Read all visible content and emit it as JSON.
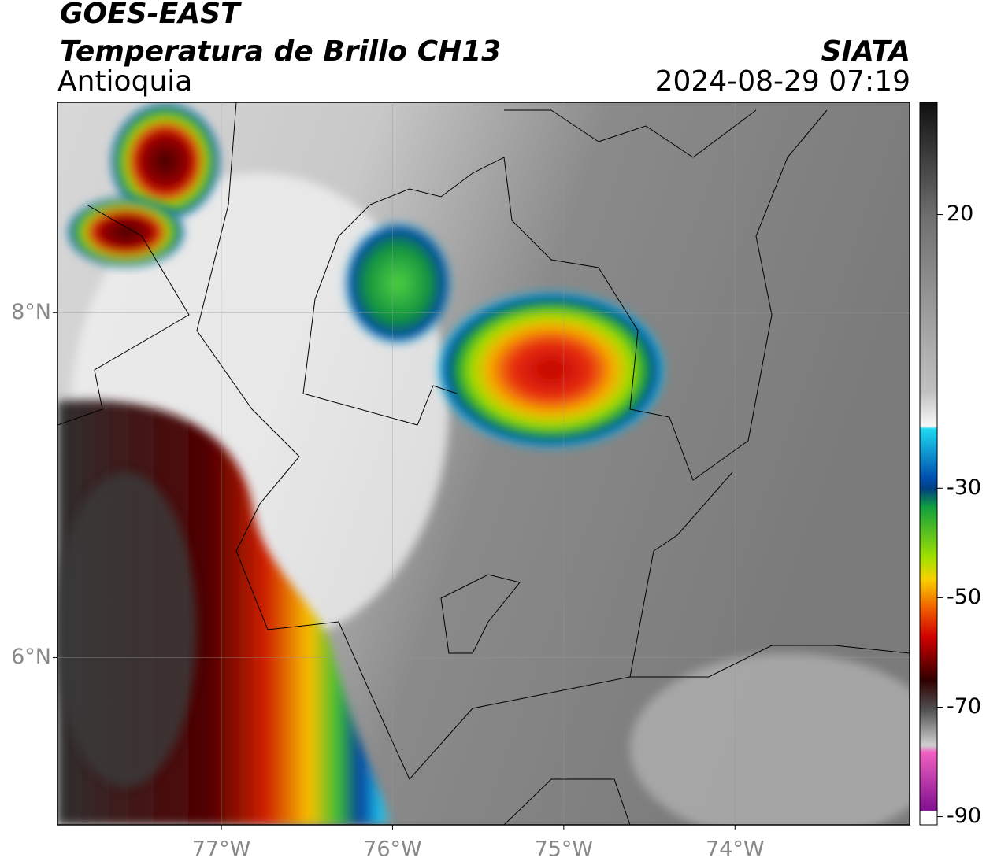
{
  "header": {
    "title": "GOES-EAST",
    "subtitle": "Temperatura de Brillo CH13",
    "region": "Antioquia",
    "source": "SIATA",
    "datetime": "2024-08-29 07:19"
  },
  "map": {
    "xlim": [
      -77.957,
      -72.98
    ],
    "ylim": [
      5.03,
      9.22
    ],
    "xticks": [
      {
        "value": -77,
        "label": "77°W"
      },
      {
        "value": -76,
        "label": "76°W"
      },
      {
        "value": -75,
        "label": "75°W"
      },
      {
        "value": -74,
        "label": "74°W"
      }
    ],
    "yticks": [
      {
        "value": 8,
        "label": "8°N"
      },
      {
        "value": 6,
        "label": "6°N"
      }
    ]
  },
  "colorbar": {
    "lim": [
      -91.5,
      40.5
    ],
    "ticks": [
      20,
      -30,
      -50,
      -70,
      -90
    ]
  }
}
